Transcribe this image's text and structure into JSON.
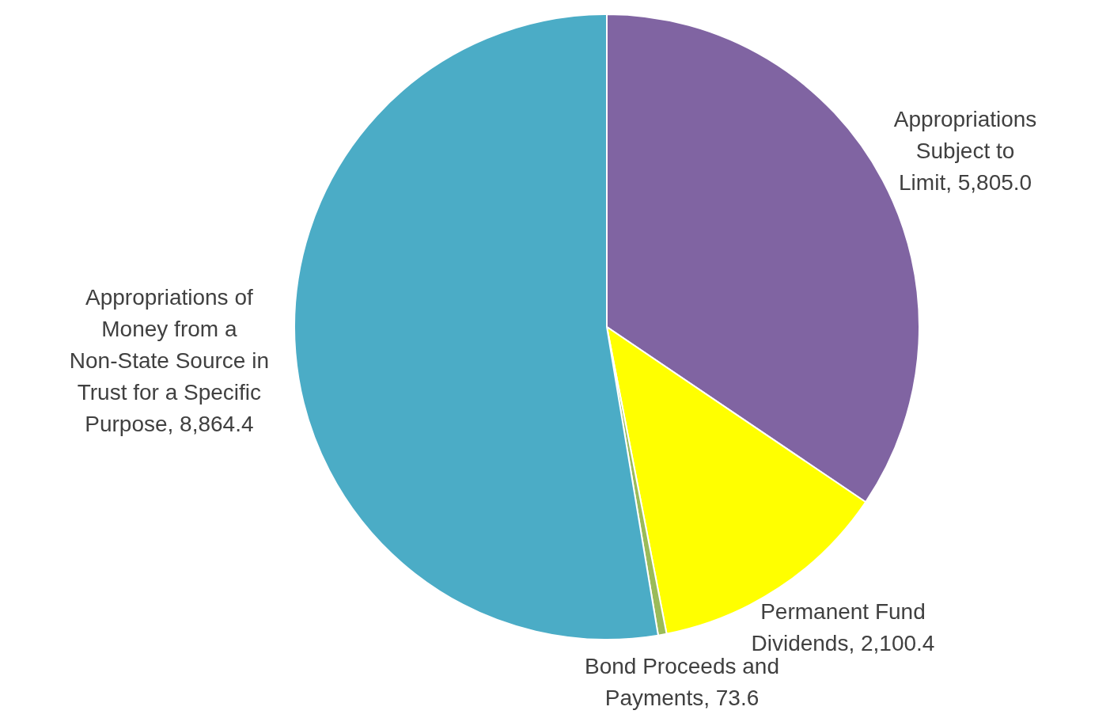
{
  "chart_data": {
    "type": "pie",
    "categories": [
      "Appropriations Subject to Limit",
      "Permanent Fund Dividends",
      "Bond Proceeds and Payments",
      "Appropriations of Money from a Non-State Source in Trust for a Specific Purpose"
    ],
    "values": [
      5805.0,
      2100.4,
      73.6,
      8864.4
    ],
    "value_labels": [
      "5,805.0",
      "2,100.4",
      "73.6",
      "8,864.4"
    ],
    "colors": [
      "#8064a2",
      "#ffff00",
      "#9bbb59",
      "#4bacc6"
    ],
    "legend": false
  }
}
